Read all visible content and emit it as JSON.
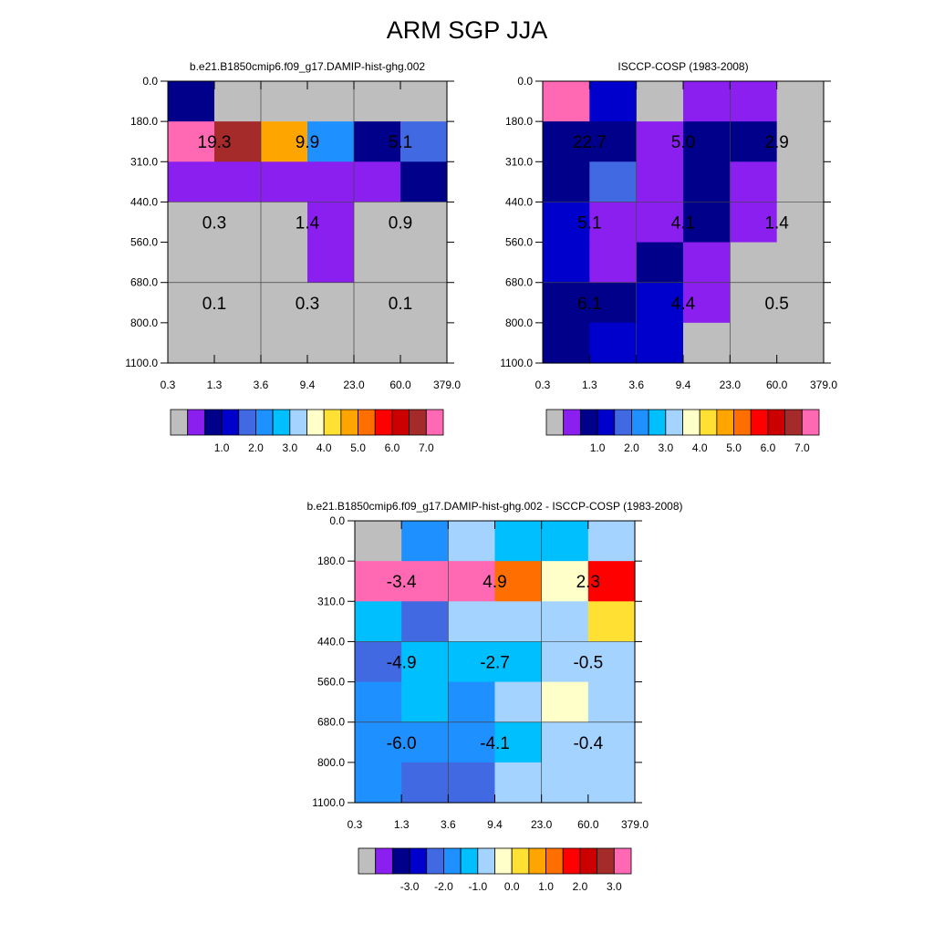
{
  "title": "ARM SGP JJA",
  "colors": {
    "abs_palette": [
      "#bebebe",
      "#8a1fef",
      "#00008b",
      "#0000cd",
      "#4169e1",
      "#1e90ff",
      "#00bfff",
      "#a4d3ff",
      "#ffffca",
      "#ffe033",
      "#ffa500",
      "#ff6e00",
      "#ff0000",
      "#cd0000",
      "#a52a2a",
      "#ff69b4"
    ],
    "diff_palette": [
      "#bebebe",
      "#8a1fef",
      "#00008b",
      "#0000cd",
      "#4169e1",
      "#1e90ff",
      "#00bfff",
      "#a4d3ff",
      "#ffffca",
      "#ffe033",
      "#ffa500",
      "#ff6e00",
      "#ff0000",
      "#cd0000",
      "#a52a2a",
      "#ff69b4"
    ]
  },
  "chart_data": [
    {
      "type": "heatmap",
      "title": "b.e21.B1850cmip6.f09_g17.DAMIP-hist-ghg.002",
      "x_ticks": [
        "0.3",
        "1.3",
        "3.6",
        "9.4",
        "23.0",
        "60.0",
        "379.0"
      ],
      "y_ticks": [
        "0.0",
        "180.0",
        "310.0",
        "440.0",
        "560.0",
        "680.0",
        "800.0",
        "1100.0"
      ],
      "cells": [
        [
          2,
          0,
          0,
          0,
          0,
          0
        ],
        [
          15,
          14,
          10,
          5,
          2,
          4
        ],
        [
          1,
          1,
          1,
          1,
          1,
          2
        ],
        [
          0,
          0,
          0,
          1,
          0,
          0
        ],
        [
          0,
          0,
          0,
          1,
          0,
          0
        ],
        [
          0,
          0,
          0,
          0,
          0,
          0
        ],
        [
          0,
          0,
          0,
          0,
          0,
          0
        ]
      ],
      "labels": [
        {
          "row": 1,
          "col": 0,
          "text": "19.3"
        },
        {
          "row": 1,
          "col": 2,
          "text": "9.9"
        },
        {
          "row": 1,
          "col": 4,
          "text": "5.1"
        },
        {
          "row": 3,
          "col": 0,
          "text": "0.3"
        },
        {
          "row": 3,
          "col": 2,
          "text": "1.4"
        },
        {
          "row": 3,
          "col": 4,
          "text": "0.9"
        },
        {
          "row": 5,
          "col": 0,
          "text": "0.1"
        },
        {
          "row": 5,
          "col": 2,
          "text": "0.3"
        },
        {
          "row": 5,
          "col": 4,
          "text": "0.1"
        }
      ],
      "colorbar_labels": [
        "1.0",
        "2.0",
        "3.0",
        "4.0",
        "5.0",
        "6.0",
        "7.0"
      ]
    },
    {
      "type": "heatmap",
      "title": "ISCCP-COSP (1983-2008)",
      "x_ticks": [
        "0.3",
        "1.3",
        "3.6",
        "9.4",
        "23.0",
        "60.0",
        "379.0"
      ],
      "y_ticks": [
        "0.0",
        "180.0",
        "310.0",
        "440.0",
        "560.0",
        "680.0",
        "800.0",
        "1100.0"
      ],
      "cells": [
        [
          15,
          3,
          0,
          1,
          1,
          0
        ],
        [
          2,
          2,
          1,
          2,
          2,
          0
        ],
        [
          2,
          4,
          1,
          2,
          1,
          0
        ],
        [
          3,
          1,
          1,
          2,
          1,
          0
        ],
        [
          3,
          1,
          2,
          1,
          0,
          0
        ],
        [
          2,
          2,
          3,
          1,
          0,
          0
        ],
        [
          2,
          3,
          3,
          0,
          0,
          0
        ]
      ],
      "labels": [
        {
          "row": 1,
          "col": 0,
          "text": "22.7"
        },
        {
          "row": 1,
          "col": 2,
          "text": "5.0"
        },
        {
          "row": 1,
          "col": 4,
          "text": "2.9"
        },
        {
          "row": 3,
          "col": 0,
          "text": "5.1"
        },
        {
          "row": 3,
          "col": 2,
          "text": "4.1"
        },
        {
          "row": 3,
          "col": 4,
          "text": "1.4"
        },
        {
          "row": 5,
          "col": 0,
          "text": "6.1"
        },
        {
          "row": 5,
          "col": 2,
          "text": "4.4"
        },
        {
          "row": 5,
          "col": 4,
          "text": "0.5"
        }
      ],
      "colorbar_labels": [
        "1.0",
        "2.0",
        "3.0",
        "4.0",
        "5.0",
        "6.0",
        "7.0"
      ]
    },
    {
      "type": "heatmap",
      "title": "b.e21.B1850cmip6.f09_g17.DAMIP-hist-ghg.002 - ISCCP-COSP (1983-2008)",
      "x_ticks": [
        "0.3",
        "1.3",
        "3.6",
        "9.4",
        "23.0",
        "60.0",
        "379.0"
      ],
      "y_ticks": [
        "0.0",
        "180.0",
        "310.0",
        "440.0",
        "560.0",
        "680.0",
        "800.0",
        "1100.0"
      ],
      "cells": [
        [
          0,
          5,
          7,
          6,
          6,
          7
        ],
        [
          15,
          15,
          15,
          11,
          8,
          12
        ],
        [
          6,
          4,
          7,
          7,
          7,
          9
        ],
        [
          4,
          6,
          6,
          6,
          7,
          7
        ],
        [
          5,
          6,
          5,
          7,
          8,
          7
        ],
        [
          5,
          5,
          5,
          6,
          7,
          7
        ],
        [
          5,
          4,
          4,
          7,
          7,
          7
        ]
      ],
      "labels": [
        {
          "row": 1,
          "col": 0,
          "text": "-3.4"
        },
        {
          "row": 1,
          "col": 2,
          "text": "4.9"
        },
        {
          "row": 1,
          "col": 4,
          "text": "2.3"
        },
        {
          "row": 3,
          "col": 0,
          "text": "-4.9"
        },
        {
          "row": 3,
          "col": 2,
          "text": "-2.7"
        },
        {
          "row": 3,
          "col": 4,
          "text": "-0.5"
        },
        {
          "row": 5,
          "col": 0,
          "text": "-6.0"
        },
        {
          "row": 5,
          "col": 2,
          "text": "-4.1"
        },
        {
          "row": 5,
          "col": 4,
          "text": "-0.4"
        }
      ],
      "colorbar_labels": [
        "-3.0",
        "-2.0",
        "-1.0",
        "0.0",
        "1.0",
        "2.0",
        "3.0"
      ]
    }
  ]
}
